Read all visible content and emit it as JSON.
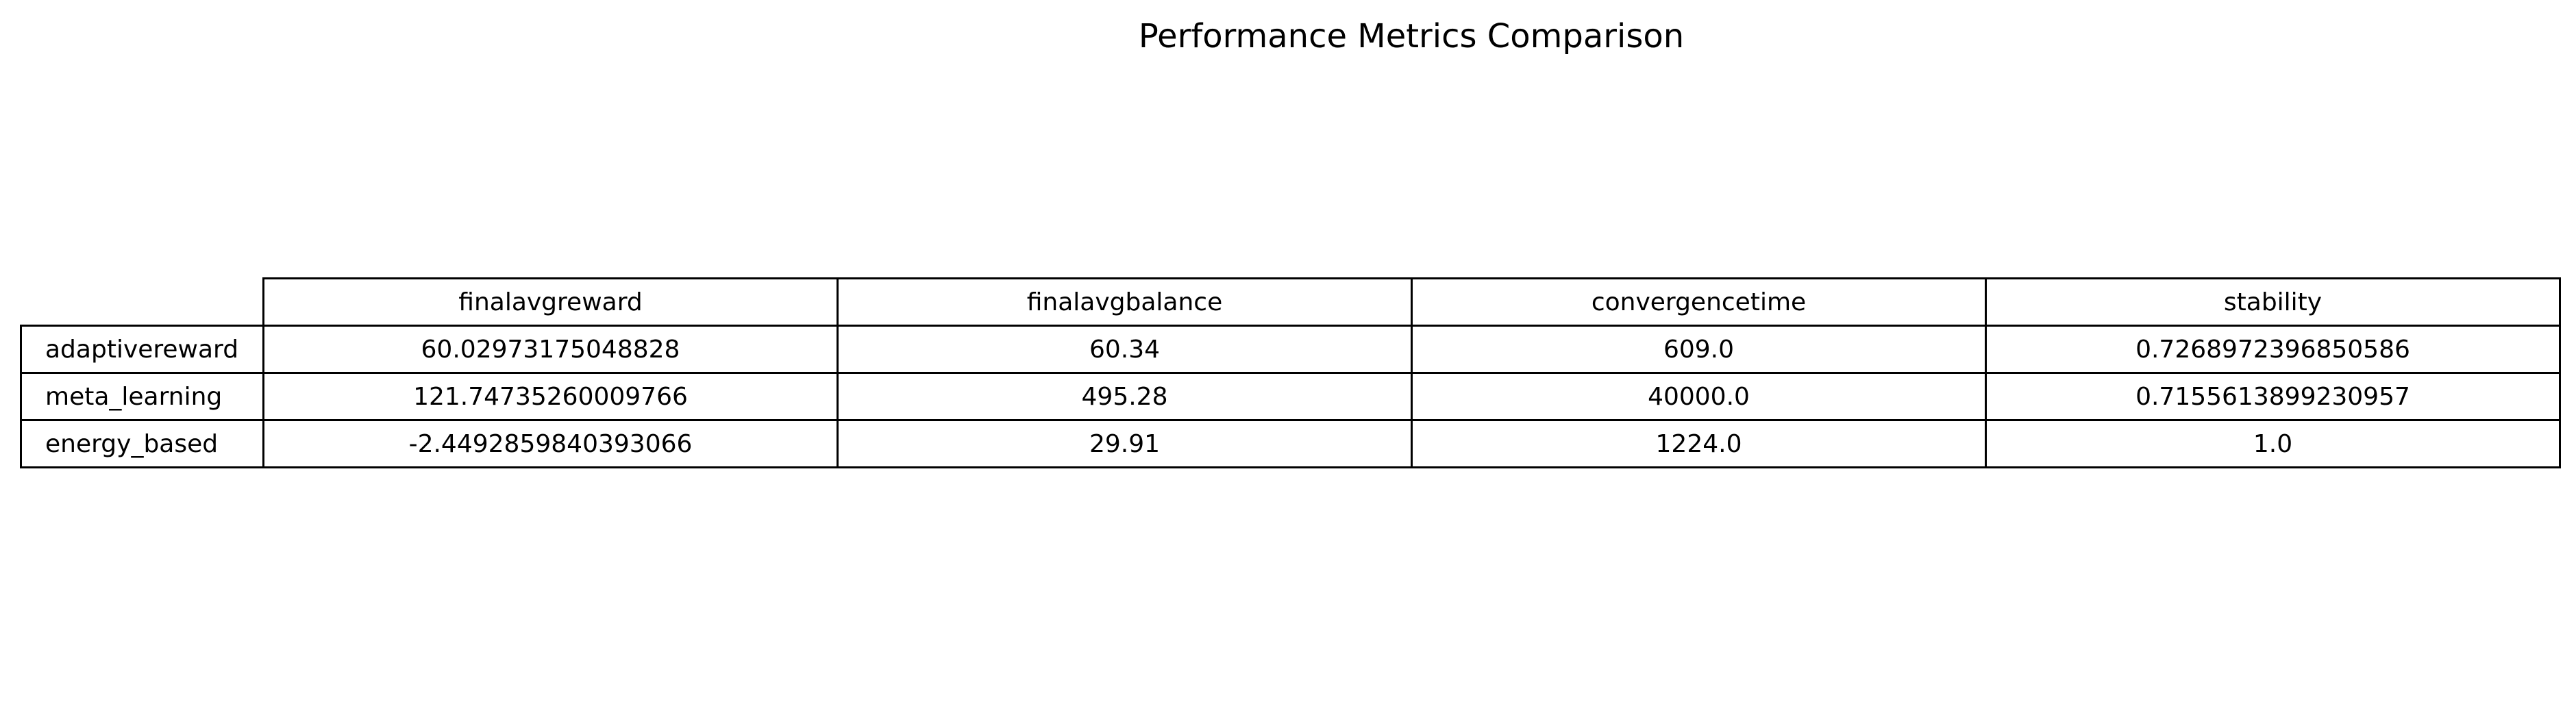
{
  "chart_data": {
    "type": "table",
    "title": "Performance Metrics Comparison",
    "columns": [
      "finalavgreward",
      "finalavgbalance",
      "convergencetime",
      "stability"
    ],
    "rows": [
      {
        "label": "adaptivereward",
        "values": [
          "60.02973175048828",
          "60.34",
          "609.0",
          "0.7268972396850586"
        ]
      },
      {
        "label": "meta_learning",
        "values": [
          "121.74735260009766",
          "495.28",
          "40000.0",
          "0.7155613899230957"
        ]
      },
      {
        "label": "energy_based",
        "values": [
          "-2.4492859840393066",
          "29.91",
          "1224.0",
          "1.0"
        ]
      }
    ]
  }
}
